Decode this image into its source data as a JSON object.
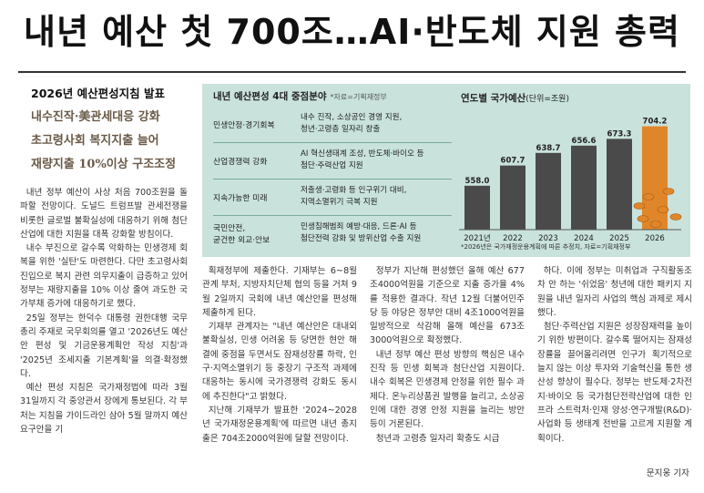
{
  "headline": "내년 예산 첫 700조…AI·반도체 지원 총력",
  "subheads": {
    "kicker": "2026년 예산편성지침 발표",
    "lines": [
      "내수진작·美관세대응 강화",
      "초고령사회 복지지출 늘어",
      "재량지출 10%이상 구조조정"
    ]
  },
  "table": {
    "title": "내년 예산편성 4대 중점분야",
    "source": "*자료=기획재정부",
    "rows": [
      {
        "category": "민생안정·경기회복",
        "desc": [
          "내수 진작, 소상공인 경영 지원,",
          "청년·고령층 일자리 창출"
        ]
      },
      {
        "category": "산업경쟁력 강화",
        "desc": [
          "AI 혁신생태계 조성, 반도체·바이오 등",
          "첨단·주력산업 지원"
        ]
      },
      {
        "category": "지속가능한 미래",
        "desc": [
          "저출생·고령화 등 인구위기 대비,",
          "지역소멸위기 극복 지원"
        ]
      },
      {
        "category": "국민안전,\n굳건한 외교·안보",
        "desc": [
          "민생침해범죄 예방·대응, 드론·AI 등",
          "첨단전력 강화 및 방위산업 수출 지원"
        ]
      }
    ]
  },
  "chart_data": {
    "type": "bar",
    "title": "연도별 국가예산",
    "unit": "(단위=조원)",
    "categories": [
      "2021년",
      "2022",
      "2023",
      "2024",
      "2025",
      "2026"
    ],
    "values": [
      558.0,
      607.7,
      638.7,
      656.6,
      673.3,
      704.2
    ],
    "value_labels": [
      "558.0",
      "607.7",
      "638.7",
      "656.6",
      "673.3",
      "704.2"
    ],
    "note": "*2026년은 국가재정운용계획에 따른 추정치, 자료=기획재정부",
    "colors": {
      "bar": "#4a4a4a",
      "highlight": "#e0862a",
      "bg": "#c9e2dc"
    }
  },
  "columns": [
    [
      "내년 정부 예산이 사상 처음 700조원을 돌파할 전망이다. 도널드 트럼프발 관세전쟁을 비롯한 글로벌 불확실성에 대응하기 위해 첨단산업에 대한 지원을 대폭 강화할 방침이다.",
      "내수 부진으로 갈수록 악화하는 민생경제 회복을 위한 '실탄'도 마련한다. 다만 초고령사회 진입으로 복지 관련 의무지출이 급증하고 있어 정부는 재량지출을 10% 이상 줄여 과도한 국가부채 증가에 대응하기로 했다.",
      "25일 정부는 한덕수 대통령 권한대행 국무총리 주재로 국무회의를 열고 '2026년도 예산안 편성 및 기금운용계획안 작성 지침'과 '2025년 조세지출 기본계획'을 의결·확정했다.",
      "예산 편성 지침은 국가재정법에 따라 3월 31일까지 각 중앙관서 장에게 통보된다. 각 부처는 지침을 가이드라인 삼아 5월 말까지 예산요구안을 기"
    ],
    [
      "획재정부에 제출한다. 기재부는 6~8월 관계 부처, 지방자치단체 협의 등을 거쳐 9월 2일까지 국회에 내년 예산안을 편성해 제출하게 된다.",
      "기재부 관계자는 \"내년 예산안은 대내외 불확실성, 민생 어려움 등 당면한 현안 해결에 중점을 두면서도 잠재성장률 하락, 인구·지역소멸위기 등 중장기 구조적 과제에 대응하는 동시에 국가경쟁력 강화도 동시에 추진한다\"고 밝혔다.",
      "지난해 기재부가 발표한 '2024~2028년 국가재정운용계획'에 따르면 내년 총지출은 704조2000억원에 달할 전망이다."
    ],
    [
      "정부가 지난해 편성했던 올해 예산 677조4000억원을 기준으로 지출 증가율 4%를 적용한 결과다. 작년 12월 더불어민주당 등 야당은 정부안 대비 4조1000억원을 일방적으로 삭감해 올해 예산을 673조3000억원으로 확정했다.",
      "내년 정부 예산 편성 방향의 핵심은 내수 진작 등 민생 회복과 첨단산업 지원이다. 내수 회복은 민생경제 안정을 위한 필수 과제다. 온누리상품권 발행을 늘리고, 소상공인에 대한 경영 안정 지원을 늘리는 방안 등이 거론된다.",
      "청년과 고령층 일자리 확충도 시급"
    ],
    [
      "하다. 이에 정부는 미취업과 구직활동조차 안 하는 '쉬었음' 청년에 대한 패키지 지원을 내년 일자리 사업의 핵심 과제로 제시했다.",
      "첨단·주력산업 지원은 성장잠재력을 높이기 위한 방편이다. 갈수록 떨어지는 잠재성장률을 끌어올리려면 인구가 획기적으로 늘지 않는 이상 투자와 기술혁신을 통한 생산성 향상이 필수다. 정부는 반도체·2차전지·바이오 등 국가첨단전략산업에 대한 인프라 스트럭처·인재 양성·연구개발(R&D)·사업화 등 생태계 전반을 고르게 지원할 계획이다."
    ]
  ],
  "byline": "문지웅 기자"
}
